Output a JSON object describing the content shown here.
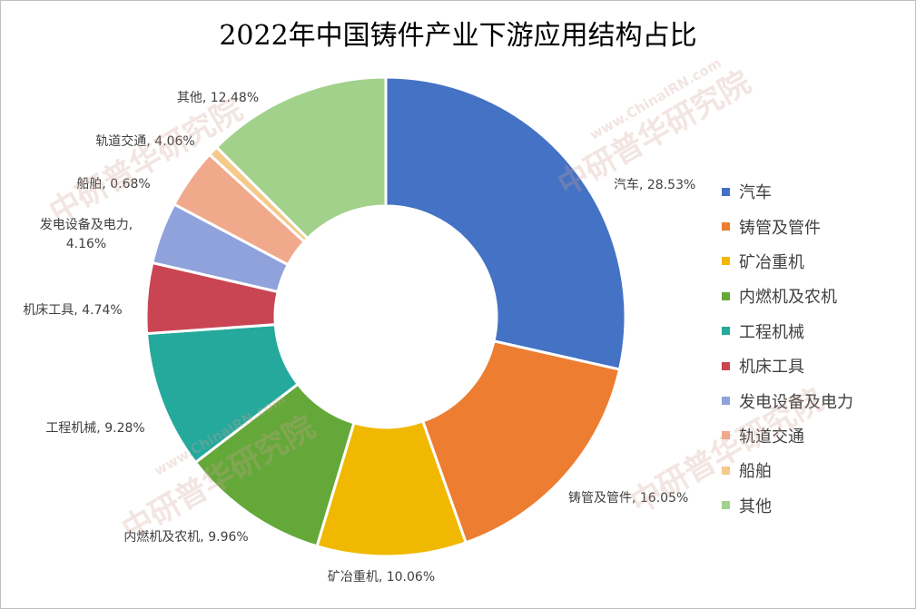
{
  "chart_data": {
    "type": "pie",
    "donut": true,
    "title": "2022年中国铸件产业下游应用结构占比",
    "categories": [
      "汽车",
      "铸管及管件",
      "矿冶重机",
      "内燃机及农机",
      "工程机械",
      "机床工具",
      "发电设备及电力",
      "轨道交通",
      "船舶",
      "其他"
    ],
    "values": [
      28.53,
      16.05,
      10.06,
      9.96,
      9.28,
      4.74,
      4.16,
      4.06,
      0.68,
      12.48
    ],
    "data_labels": [
      "汽车, 28.53%",
      "铸管及管件, 16.05%",
      "矿冶重机, 10.06%",
      "内燃机及农机, 9.96%",
      "工程机械, 9.28%",
      "机床工具, 4.74%",
      "发电设备及电力,\n4.16%",
      "轨道交通, 4.06%",
      "船舶, 0.68%",
      "其他, 12.48%"
    ],
    "colors": [
      "#4472c4",
      "#ed7d31",
      "#f0b800",
      "#65a83a",
      "#24a99c",
      "#ca4553",
      "#8fa2dc",
      "#f0a98b",
      "#f4c98a",
      "#a2d18b"
    ],
    "legend_position": "right"
  },
  "watermark": {
    "brand": "中研普华研究院",
    "site": "www.ChinaIRN.com",
    "logo": "CIRN"
  }
}
